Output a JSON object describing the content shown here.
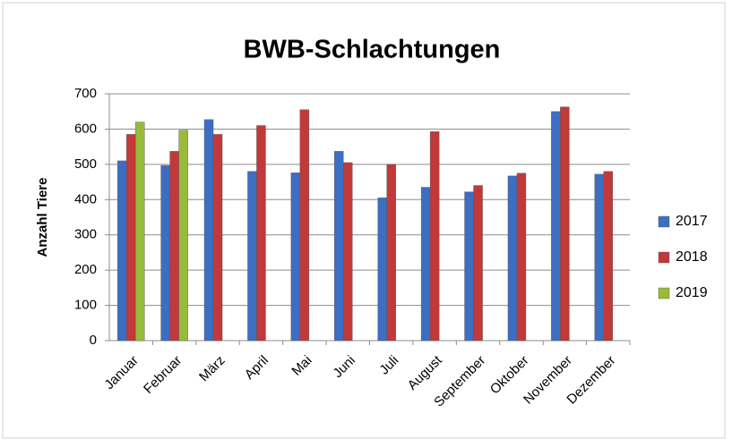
{
  "chart_data": {
    "type": "bar",
    "title": "BWB-Schlachtungen",
    "y_label": "Anzahl Tiere",
    "categories": [
      "Januar",
      "Februar",
      "März",
      "April",
      "Mai",
      "Juni",
      "Juli",
      "August",
      "September",
      "Oktober",
      "November",
      "Dezember"
    ],
    "series": [
      {
        "name": "2017",
        "color": "#3c6ec2",
        "values": [
          510,
          497,
          627,
          480,
          476,
          537,
          405,
          435,
          422,
          467,
          650,
          472
        ]
      },
      {
        "name": "2018",
        "color": "#c2393a",
        "values": [
          585,
          537,
          585,
          610,
          655,
          505,
          500,
          593,
          440,
          475,
          663,
          480
        ]
      },
      {
        "name": "2019",
        "color": "#98bb3a",
        "values": [
          620,
          597,
          null,
          null,
          null,
          null,
          null,
          null,
          null,
          null,
          null,
          null
        ]
      }
    ],
    "ylim": [
      0,
      700
    ],
    "yticks": [
      0,
      100,
      200,
      300,
      400,
      500,
      600,
      700
    ],
    "grid": true,
    "legend": "right"
  }
}
